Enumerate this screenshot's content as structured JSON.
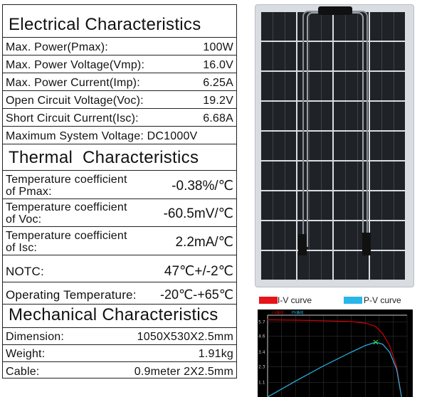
{
  "electrical": {
    "title": "Electrical Characteristics",
    "rows": [
      {
        "label": "Max. Power(Pmax):",
        "value": "100W"
      },
      {
        "label": "Max. Power Voltage(Vmp):",
        "value": "16.0V"
      },
      {
        "label": "Max. Power Current(Imp):",
        "value": "6.25A"
      },
      {
        "label": "Open Circuit Voltage(Voc):",
        "value": "19.2V"
      },
      {
        "label": "Short Circuit Current(Isc):",
        "value": "6.68A"
      },
      {
        "label": "Maximum System Voltage: DC1000V",
        "value": ""
      }
    ]
  },
  "thermal": {
    "title": "Thermal  Characteristics",
    "rows": [
      {
        "label_line1": "Temperature coefficient",
        "label_line2": "of Pmax:",
        "value": "-0.38%/℃"
      },
      {
        "label_line1": "Temperature coefficient",
        "label_line2": "of Voc:",
        "value": "-60.5mV/℃"
      },
      {
        "label_line1": "Temperature coefficient",
        "label_line2": "of Isc:",
        "value": "2.2mA/℃"
      }
    ],
    "notc": {
      "label": "NOTC:",
      "value": "47℃+/-2℃"
    },
    "operating": {
      "label": "Operating Temperature:",
      "value": "-20℃-+65℃"
    }
  },
  "mechanical": {
    "title": "Mechanical Characteristics",
    "rows": [
      {
        "label": "Dimension:",
        "value": "1050X530X2.5mm"
      },
      {
        "label": "Weight:",
        "value": "1.91kg"
      },
      {
        "label": "Cable:",
        "value": "0.9meter 2X2.5mm"
      }
    ]
  },
  "legend": {
    "iv_label": "I-V curve",
    "pv_label": "P-V curve",
    "iv_color": "#e8141b",
    "pv_color": "#29b6e8"
  },
  "chart_data": {
    "type": "line",
    "title": "",
    "xlabel": "",
    "ylabel": "",
    "series_labels_shown": [
      "I-V曲线",
      "PV曲线"
    ],
    "y_ticks": [
      "5.7",
      "4.6",
      "3.4",
      "2.3",
      "1.1"
    ],
    "series": [
      {
        "name": "I-V curve",
        "color": "#d40000",
        "x": [
          0,
          4,
          8,
          12,
          14,
          15.5,
          16.5,
          17.5,
          18.5,
          19.2
        ],
        "y": [
          5.85,
          5.82,
          5.78,
          5.72,
          5.6,
          5.35,
          4.8,
          3.9,
          2.3,
          0
        ]
      },
      {
        "name": "P-V curve",
        "color": "#29b6e8",
        "x": [
          0,
          4,
          8,
          12,
          14,
          15.5,
          16.5,
          17.5,
          18.5,
          19.2
        ],
        "y": [
          0,
          1.2,
          2.35,
          3.4,
          3.9,
          4.15,
          4.0,
          3.4,
          2.1,
          0
        ]
      }
    ],
    "ylim": [
      0,
      6.2
    ],
    "xlim": [
      0,
      20
    ],
    "grid": true,
    "max_power_marker": {
      "x": 15.5,
      "y": 4.15
    }
  }
}
